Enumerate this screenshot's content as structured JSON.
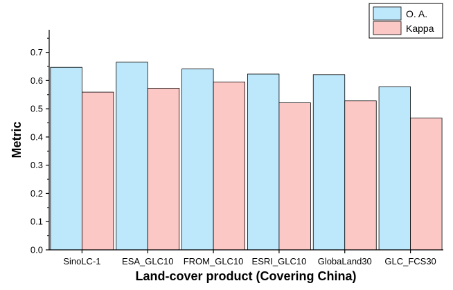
{
  "chart_data": {
    "type": "bar",
    "xlabel": "Land-cover product (Covering China)",
    "ylabel": "Metric",
    "categories": [
      "SinoLC-1",
      "ESA_GLC10",
      "FROM_GLC10",
      "ESRI_GLC10",
      "GlobaLand30",
      "GLC_FCS30"
    ],
    "series": [
      {
        "name": "O. A.",
        "values": [
          0.647,
          0.665,
          0.641,
          0.623,
          0.621,
          0.578
        ],
        "color": "#bde7fa"
      },
      {
        "name": "Kappa",
        "values": [
          0.559,
          0.573,
          0.595,
          0.521,
          0.528,
          0.467
        ],
        "color": "#fcc8c6"
      }
    ],
    "ylim": [
      0,
      0.78
    ],
    "yticks": [
      "0.0",
      "0.1",
      "0.2",
      "0.3",
      "0.4",
      "0.5",
      "0.6",
      "0.7"
    ],
    "grid": false,
    "legend_position": "top-right"
  }
}
